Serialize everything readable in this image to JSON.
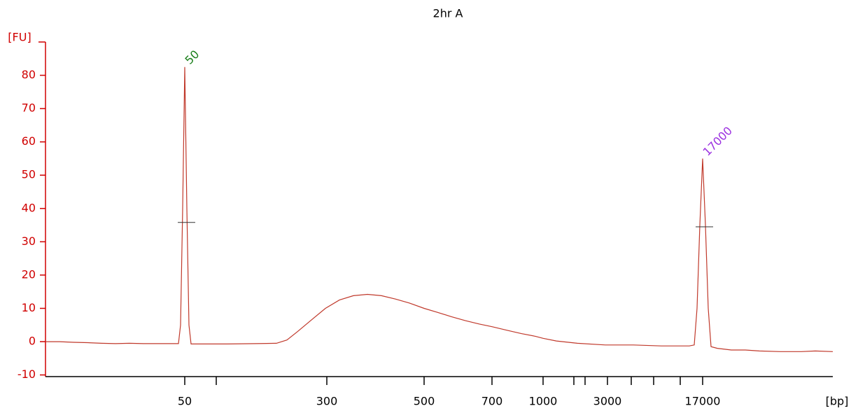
{
  "chart_data": {
    "type": "line",
    "title": "2hr A",
    "y_label": "[FU]",
    "x_label": "[bp]",
    "color": "#c0392b",
    "axis_color": "#d00000",
    "xlim": [
      0,
      1125
    ],
    "ylim": [
      -10.5,
      90
    ],
    "yticks": [
      -10,
      0,
      10,
      20,
      30,
      40,
      50,
      60,
      70,
      80
    ],
    "xticks": [
      {
        "value": 199,
        "label": "50"
      },
      {
        "value": 402,
        "label": "300"
      },
      {
        "value": 541,
        "label": "500"
      },
      {
        "value": 638,
        "label": "700"
      },
      {
        "value": 711,
        "label": "1000"
      },
      {
        "value": 803,
        "label": "3000"
      },
      {
        "value": 939,
        "label": "17000"
      }
    ],
    "xminorticks": [
      244,
      755,
      771,
      837,
      869,
      907
    ],
    "x": [
      0,
      20,
      40,
      60,
      80,
      100,
      120,
      140,
      160,
      180,
      190,
      193,
      196,
      199,
      202,
      205,
      208,
      220,
      260,
      300,
      330,
      345,
      360,
      380,
      400,
      420,
      440,
      460,
      480,
      500,
      520,
      541,
      560,
      580,
      600,
      620,
      638,
      660,
      680,
      700,
      711,
      730,
      760,
      800,
      840,
      880,
      920,
      927,
      931,
      935,
      939,
      943,
      947,
      951,
      960,
      980,
      1000,
      1020,
      1050,
      1080,
      1100,
      1125
    ],
    "values": [
      0,
      0,
      -0.2,
      -0.3,
      -0.5,
      -0.6,
      -0.5,
      -0.6,
      -0.6,
      -0.6,
      -0.6,
      5,
      40,
      82.5,
      40,
      5,
      -0.7,
      -0.7,
      -0.7,
      -0.6,
      -0.5,
      0.5,
      3,
      6.5,
      10,
      12.5,
      13.8,
      14.2,
      13.8,
      12.8,
      11.6,
      10,
      8.8,
      7.5,
      6.3,
      5.3,
      4.5,
      3.4,
      2.4,
      1.6,
      1.0,
      0.2,
      -0.5,
      -1,
      -1,
      -1.3,
      -1.3,
      -1,
      10,
      35,
      55,
      35,
      10,
      -1.5,
      -2,
      -2.5,
      -2.5,
      -2.8,
      -3,
      -3,
      -2.8,
      -3
    ],
    "markers": [
      {
        "x": 199,
        "y": 35.8
      },
      {
        "x": 939,
        "y": 34.5
      }
    ],
    "annotations": [
      {
        "text": "50",
        "x": 199,
        "y": 82.5,
        "color": "#1a7f1a"
      },
      {
        "text": "17000",
        "x": 939,
        "y": 55,
        "color": "#9b30e0"
      }
    ]
  }
}
